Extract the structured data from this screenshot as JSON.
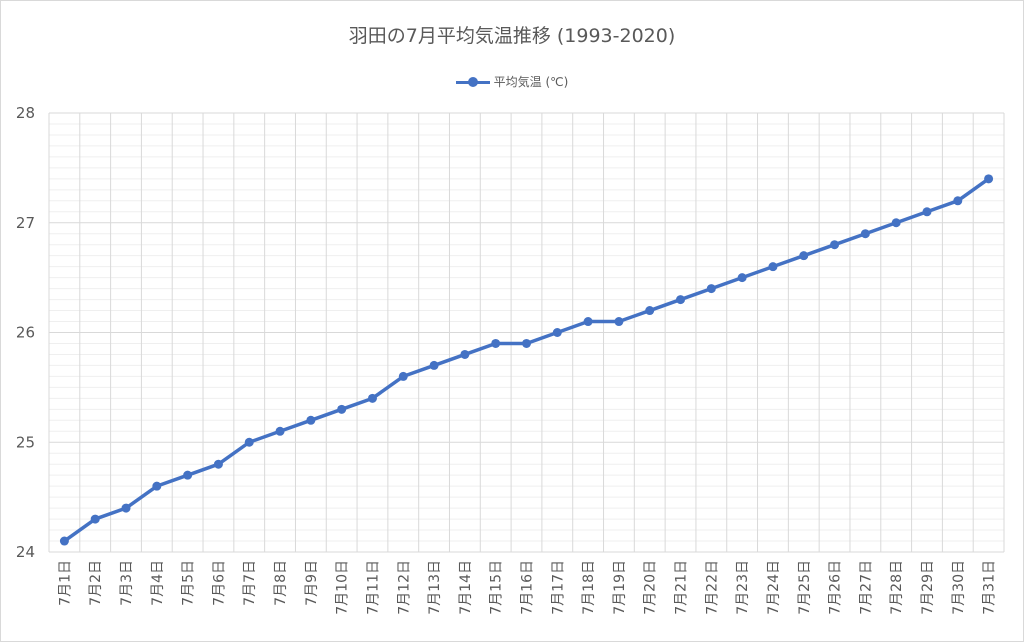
{
  "chart_data": {
    "type": "line",
    "title": "羽田の7月平均気温推移 (1993-2020)",
    "legend_position": "top",
    "grid": true,
    "ylim": [
      24,
      28
    ],
    "y_ticks": [
      "24",
      "25",
      "26",
      "27",
      "28"
    ],
    "categories": [
      "7月1日",
      "7月2日",
      "7月3日",
      "7月4日",
      "7月5日",
      "7月6日",
      "7月7日",
      "7月8日",
      "7月9日",
      "7月10日",
      "7月11日",
      "7月12日",
      "7月13日",
      "7月14日",
      "7月15日",
      "7月16日",
      "7月17日",
      "7月18日",
      "7月19日",
      "7月20日",
      "7月21日",
      "7月22日",
      "7月23日",
      "7月24日",
      "7月25日",
      "7月26日",
      "7月27日",
      "7月28日",
      "7月29日",
      "7月30日",
      "7月31日"
    ],
    "series": [
      {
        "name": "平均気温 (℃)",
        "color": "#4472c4",
        "values": [
          24.1,
          24.3,
          24.4,
          24.6,
          24.7,
          24.8,
          25.0,
          25.1,
          25.2,
          25.3,
          25.4,
          25.6,
          25.7,
          25.8,
          25.9,
          25.9,
          26.0,
          26.1,
          26.1,
          26.2,
          26.3,
          26.4,
          26.5,
          26.6,
          26.7,
          26.8,
          26.9,
          27.0,
          27.1,
          27.2,
          27.4
        ]
      }
    ]
  }
}
